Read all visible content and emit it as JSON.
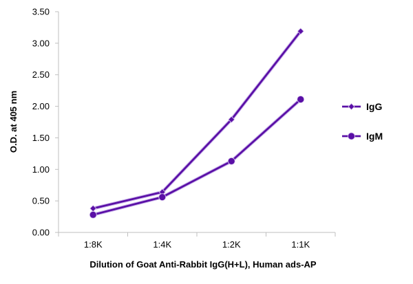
{
  "chart_data": {
    "type": "line",
    "title": "",
    "xlabel": "Dilution of Goat Anti-Rabbit IgG(H+L), Human ads-AP",
    "ylabel": "O.D. at 405 nm",
    "categories": [
      "1:8K",
      "1:4K",
      "1:2K",
      "1:1K"
    ],
    "ylim": [
      0,
      3.5
    ],
    "yticks": [
      "0.00",
      "0.50",
      "1.00",
      "1.50",
      "2.00",
      "2.50",
      "3.00",
      "3.50"
    ],
    "grid": false,
    "legend_position": "right",
    "series": [
      {
        "name": "IgG",
        "marker": "diamond",
        "color": "#5a0fa6",
        "values": [
          0.38,
          0.64,
          1.79,
          3.19
        ]
      },
      {
        "name": "IgM",
        "marker": "circle",
        "color": "#5a0fa6",
        "values": [
          0.28,
          0.56,
          1.13,
          2.11
        ]
      }
    ]
  }
}
